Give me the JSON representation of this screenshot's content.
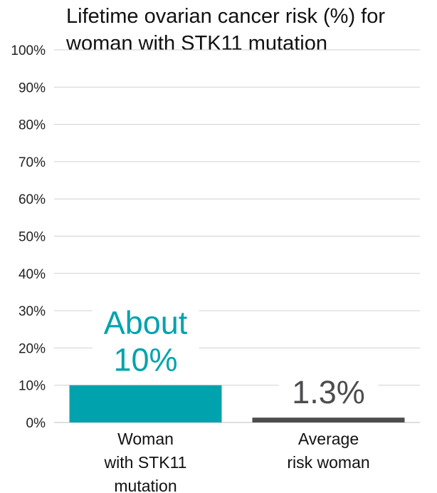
{
  "chart_data": {
    "type": "bar",
    "title": "Lifetime ovarian cancer risk (%) for woman with STK11 mutation",
    "categories": [
      "Woman with STK11 mutation",
      "Average risk woman"
    ],
    "category_lines": [
      [
        "Woman",
        "with STK11",
        "mutation"
      ],
      [
        "Average",
        "risk woman"
      ]
    ],
    "values": [
      10,
      1.3
    ],
    "data_labels": [
      [
        "About",
        "10%"
      ],
      [
        "1.3%"
      ]
    ],
    "bar_colors": [
      "#00A3AD",
      "#4D4D4F"
    ],
    "label_colors": [
      "#00A3AD",
      "#4D4D4F"
    ],
    "ylim": [
      0,
      100
    ],
    "ytick_values": [
      0,
      10,
      20,
      30,
      40,
      50,
      60,
      70,
      80,
      90,
      100
    ],
    "ytick_labels": [
      "0%",
      "10%",
      "20%",
      "30%",
      "40%",
      "50%",
      "60%",
      "70%",
      "80%",
      "90%",
      "100%"
    ],
    "grid": true,
    "gridline_color": "#D0D0D0",
    "xlabel": "",
    "ylabel": ""
  }
}
